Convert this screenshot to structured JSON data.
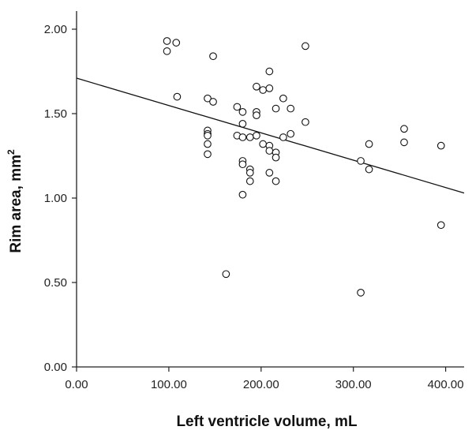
{
  "chart_data": {
    "type": "scatter",
    "xlabel": "Left ventricle volume, mL",
    "ylabel": "Rim area, mm",
    "ylabel_superscript": "2",
    "xlim": [
      0,
      420
    ],
    "ylim": [
      0,
      2.0
    ],
    "x_ticks": [
      0,
      100,
      200,
      300,
      400
    ],
    "x_tick_labels": [
      "0.00",
      "100.00",
      "200.00",
      "300.00",
      "400.00"
    ],
    "y_ticks": [
      0,
      0.5,
      1.0,
      1.5,
      2.0
    ],
    "y_tick_labels": [
      "0.00",
      "0.50",
      "1.00",
      "1.50",
      "2.00"
    ],
    "grid": false,
    "marker": "open-circle",
    "series": [
      {
        "points": [
          [
            98,
            1.93
          ],
          [
            98,
            1.87
          ],
          [
            108,
            1.92
          ],
          [
            109,
            1.6
          ],
          [
            148,
            1.84
          ],
          [
            142,
            1.59
          ],
          [
            148,
            1.57
          ],
          [
            142,
            1.4
          ],
          [
            142,
            1.38
          ],
          [
            142,
            1.37
          ],
          [
            142,
            1.32
          ],
          [
            142,
            1.26
          ],
          [
            162,
            0.55
          ],
          [
            174,
            1.54
          ],
          [
            174,
            1.37
          ],
          [
            180,
            1.51
          ],
          [
            180,
            1.44
          ],
          [
            180,
            1.36
          ],
          [
            180,
            1.22
          ],
          [
            180,
            1.2
          ],
          [
            180,
            1.02
          ],
          [
            188,
            1.36
          ],
          [
            188,
            1.17
          ],
          [
            188,
            1.15
          ],
          [
            188,
            1.1
          ],
          [
            195,
            1.66
          ],
          [
            195,
            1.51
          ],
          [
            195,
            1.49
          ],
          [
            195,
            1.37
          ],
          [
            202,
            1.64
          ],
          [
            202,
            1.32
          ],
          [
            209,
            1.75
          ],
          [
            209,
            1.65
          ],
          [
            209,
            1.31
          ],
          [
            209,
            1.28
          ],
          [
            209,
            1.15
          ],
          [
            216,
            1.53
          ],
          [
            216,
            1.27
          ],
          [
            216,
            1.24
          ],
          [
            216,
            1.1
          ],
          [
            224,
            1.59
          ],
          [
            224,
            1.36
          ],
          [
            232,
            1.53
          ],
          [
            232,
            1.38
          ],
          [
            248,
            1.9
          ],
          [
            248,
            1.45
          ],
          [
            308,
            1.22
          ],
          [
            308,
            0.44
          ],
          [
            317,
            1.32
          ],
          [
            317,
            1.17
          ],
          [
            355,
            1.41
          ],
          [
            355,
            1.33
          ],
          [
            395,
            1.31
          ],
          [
            395,
            0.84
          ]
        ]
      }
    ],
    "fit_line": {
      "x": [
        0,
        420
      ],
      "y": [
        1.71,
        1.03
      ]
    }
  }
}
